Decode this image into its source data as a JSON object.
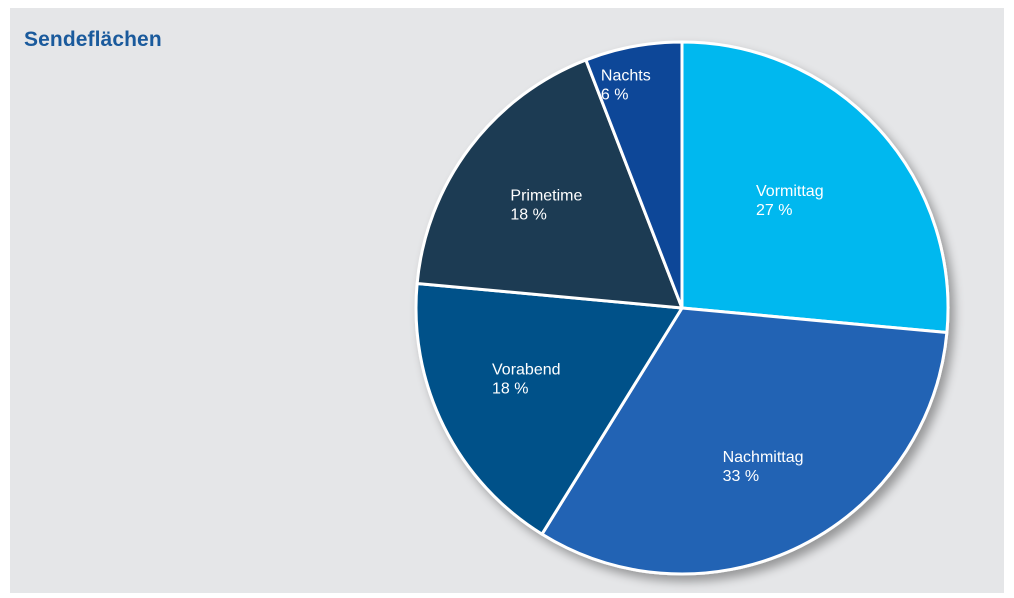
{
  "chart_data": {
    "type": "pie",
    "title": "Sendeflächen",
    "slices": [
      {
        "label": "Vormittag",
        "value": 27,
        "value_label": "27 %",
        "color": "#00b8ef"
      },
      {
        "label": "Nachmittag",
        "value": 33,
        "value_label": "33 %",
        "color": "#2464b4"
      },
      {
        "label": "Vorabend",
        "value": 18,
        "value_label": "18 %",
        "color": "#005189"
      },
      {
        "label": "Primetime",
        "value": 18,
        "value_label": "18 %",
        "color": "#1f3b52"
      },
      {
        "label": "Nachts",
        "value": 6,
        "value_label": "6 %",
        "color": "#0f4698"
      }
    ],
    "start": "12 o'clock",
    "direction": "clockwise"
  },
  "colors": {
    "background": "#e5e6e8",
    "title": "#1a5a9c",
    "separator": "#ffffff"
  }
}
